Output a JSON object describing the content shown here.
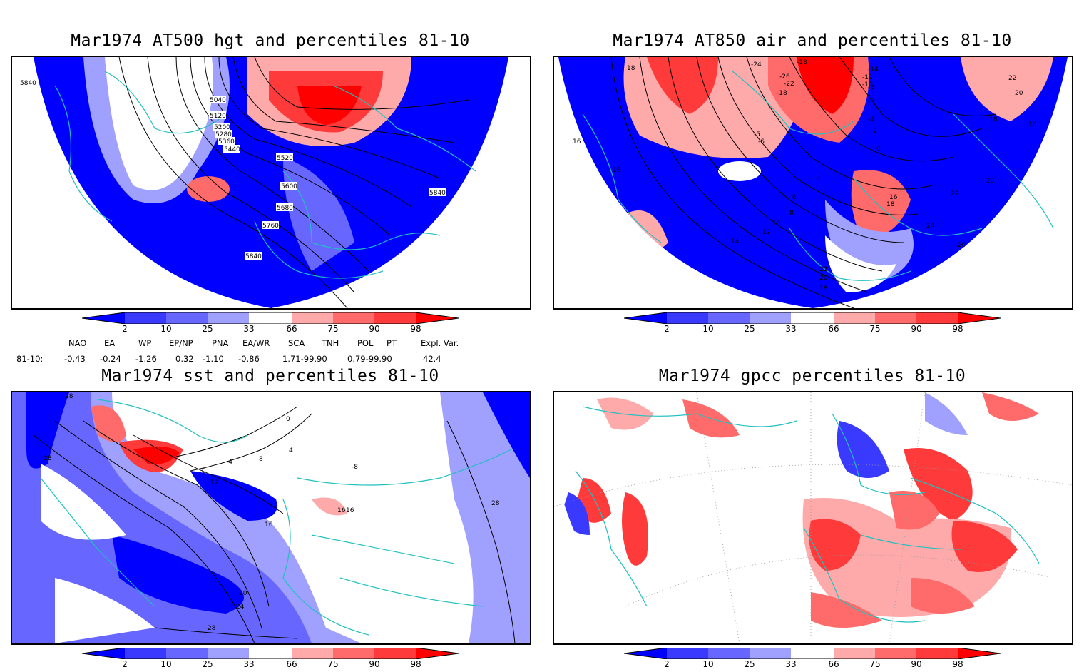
{
  "panels": [
    {
      "title": "Mar1974 AT500 hgt and percentiles 81-10",
      "contour_labels": [
        "5840",
        "5040",
        "5120",
        "5200",
        "5280",
        "5360",
        "5440",
        "5520",
        "5600",
        "5680",
        "5760",
        "5840",
        "5840"
      ]
    },
    {
      "title": "Mar1974 AT850 air and percentiles 81-10",
      "contour_labels": [
        "18",
        "-24",
        "-18",
        "-26",
        "-22",
        "-18",
        "-14",
        "-12",
        "-10",
        "-8",
        "-6",
        "-4",
        "-2",
        "0",
        "22",
        "20",
        "18",
        "16",
        "16",
        "18",
        "-5",
        "-6",
        "4",
        "6",
        "8",
        "10",
        "12",
        "14",
        "16",
        "18",
        "20",
        "22",
        "24",
        "20",
        "22",
        "20",
        "18"
      ]
    },
    {
      "title": "Mar1974 sst and percentiles 81-10",
      "contour_labels": [
        "28",
        "28",
        "0",
        "4",
        "8",
        "-4",
        "0",
        "12",
        "16",
        "16",
        "16",
        "20",
        "24",
        "28",
        "28",
        "-8"
      ]
    },
    {
      "title": "Mar1974 gpcc percentiles 81-10",
      "contour_labels": []
    }
  ],
  "colorbar": {
    "labels": [
      "2",
      "10",
      "25",
      "33",
      "66",
      "75",
      "90",
      "98"
    ],
    "colors": [
      "#0000ff",
      "#3a3aff",
      "#6767ff",
      "#a0a0ff",
      "#ffffff",
      "#ffaaaa",
      "#ff6b6b",
      "#ff3a3a",
      "#ff0000"
    ]
  },
  "indices": {
    "headers": [
      "NAO",
      "EA",
      "WP",
      "EP/NP",
      "PNA",
      "EA/WR",
      "SCA",
      "TNH",
      "POL",
      "PT",
      "Expl. Var."
    ],
    "row_label": "81-10:",
    "values": [
      "-0.43",
      "-0.24",
      "-1.26",
      "0.32",
      "-1.10",
      "-0.86",
      "1.71-99.90",
      "0.79-99.90",
      "42.4"
    ]
  }
}
